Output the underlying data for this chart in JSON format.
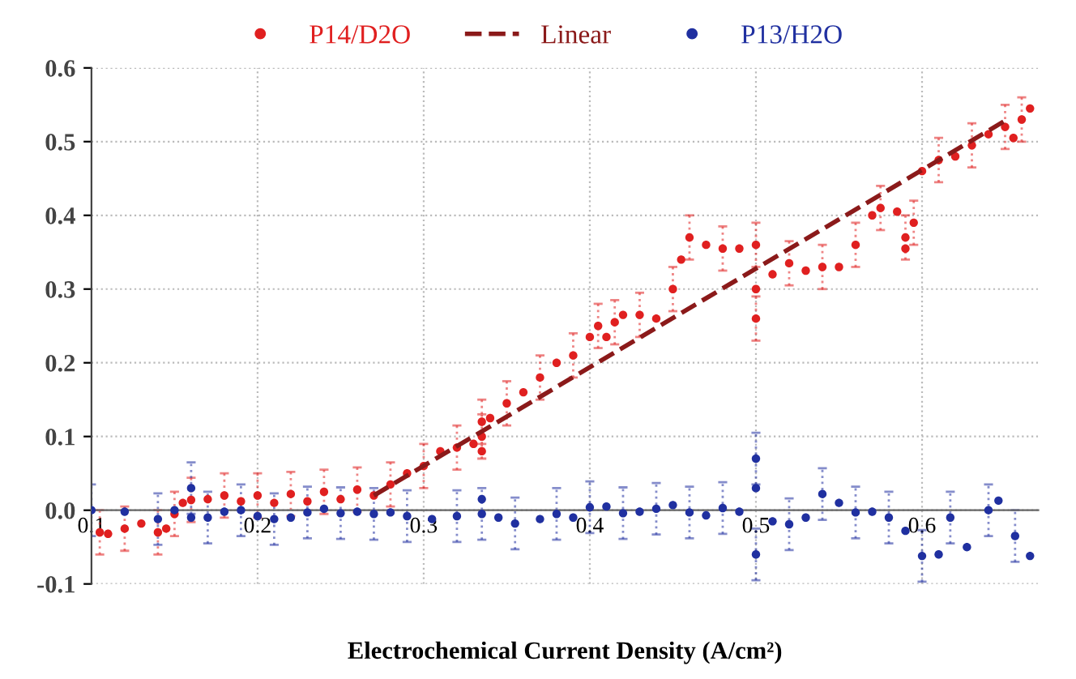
{
  "chart_data": {
    "type": "scatter",
    "xlabel": "Electrochemical Current Density (A/cm²)",
    "xlim": [
      0.1,
      0.67
    ],
    "xticks": [
      0.1,
      0.2,
      0.3,
      0.4,
      0.5,
      0.6
    ],
    "ylim": [
      -0.1,
      0.6
    ],
    "yticks": [
      -0.1,
      {
        "value": 0,
        "label": "0.0"
      },
      0.1,
      0.2,
      0.3,
      0.4,
      0.5,
      0.6
    ],
    "grid": true,
    "legend": "top",
    "marker": "circle",
    "series": [
      {
        "name": "P14/D2O",
        "color": "#e02020",
        "x": [
          0.105,
          0.11,
          0.12,
          0.13,
          0.14,
          0.145,
          0.15,
          0.155,
          0.16,
          0.17,
          0.18,
          0.19,
          0.2,
          0.21,
          0.22,
          0.23,
          0.24,
          0.25,
          0.26,
          0.27,
          0.28,
          0.29,
          0.3,
          0.31,
          0.32,
          0.33,
          0.335,
          0.335,
          0.335,
          0.34,
          0.35,
          0.36,
          0.37,
          0.38,
          0.39,
          0.4,
          0.405,
          0.41,
          0.415,
          0.42,
          0.43,
          0.44,
          0.45,
          0.455,
          0.46,
          0.47,
          0.48,
          0.49,
          0.5,
          0.5,
          0.5,
          0.51,
          0.52,
          0.53,
          0.54,
          0.55,
          0.56,
          0.57,
          0.575,
          0.585,
          0.59,
          0.59,
          0.595,
          0.6,
          0.61,
          0.62,
          0.63,
          0.64,
          0.65,
          0.655,
          0.66,
          0.665
        ],
        "values": [
          -0.03,
          -0.032,
          -0.025,
          -0.018,
          -0.03,
          -0.025,
          -0.005,
          0.01,
          0.014,
          0.015,
          0.02,
          0.012,
          0.02,
          0.01,
          0.022,
          0.012,
          0.025,
          0.015,
          0.028,
          0.02,
          0.035,
          0.05,
          0.06,
          0.08,
          0.085,
          0.09,
          0.1,
          0.08,
          0.12,
          0.125,
          0.145,
          0.16,
          0.18,
          0.2,
          0.21,
          0.235,
          0.25,
          0.235,
          0.255,
          0.265,
          0.265,
          0.26,
          0.3,
          0.34,
          0.37,
          0.36,
          0.355,
          0.355,
          0.36,
          0.3,
          0.26,
          0.32,
          0.335,
          0.325,
          0.33,
          0.33,
          0.36,
          0.4,
          0.41,
          0.405,
          0.37,
          0.355,
          0.39,
          0.46,
          0.475,
          0.48,
          0.495,
          0.51,
          0.52,
          0.505,
          0.53,
          0.545
        ],
        "errors": [
          0.03,
          null,
          0.03,
          null,
          0.03,
          null,
          0.03,
          null,
          0.03,
          null,
          0.03,
          null,
          0.03,
          null,
          0.03,
          null,
          0.03,
          null,
          0.03,
          null,
          0.03,
          null,
          0.03,
          null,
          0.03,
          null,
          0.03,
          null,
          0.03,
          null,
          0.03,
          null,
          0.03,
          null,
          0.03,
          null,
          0.03,
          null,
          0.03,
          null,
          0.03,
          null,
          0.03,
          null,
          0.03,
          null,
          0.03,
          null,
          0.03,
          null,
          0.03,
          null,
          0.03,
          null,
          0.03,
          null,
          0.03,
          null,
          0.03,
          null,
          0.03,
          null,
          0.03,
          null,
          0.03,
          null,
          0.03,
          null,
          0.03,
          null,
          0.03,
          null
        ]
      },
      {
        "name": "Linear",
        "type": "line",
        "line_style": "dashed",
        "marker": "none",
        "color": "#8b1a1a",
        "x": [
          0.27,
          0.649
        ],
        "values": [
          0.02,
          0.527
        ]
      },
      {
        "name": "P13/H2O",
        "color": "#2030a0",
        "x": [
          0.1,
          0.12,
          0.14,
          0.15,
          0.16,
          0.16,
          0.17,
          0.18,
          0.19,
          0.2,
          0.21,
          0.22,
          0.23,
          0.24,
          0.25,
          0.26,
          0.27,
          0.28,
          0.29,
          0.305,
          0.32,
          0.335,
          0.335,
          0.345,
          0.355,
          0.37,
          0.38,
          0.39,
          0.4,
          0.41,
          0.42,
          0.43,
          0.44,
          0.45,
          0.46,
          0.47,
          0.48,
          0.49,
          0.5,
          0.5,
          0.5,
          0.51,
          0.52,
          0.53,
          0.54,
          0.55,
          0.56,
          0.57,
          0.58,
          0.59,
          0.6,
          0.61,
          0.617,
          0.627,
          0.64,
          0.646,
          0.656,
          0.665
        ],
        "values": [
          0,
          -0.002,
          -0.012,
          0,
          0.03,
          -0.01,
          -0.01,
          -0.002,
          0,
          -0.008,
          -0.012,
          -0.01,
          -0.003,
          0.002,
          -0.004,
          -0.002,
          -0.005,
          -0.003,
          -0.008,
          -0.012,
          -0.008,
          0.015,
          -0.005,
          -0.01,
          -0.018,
          -0.012,
          -0.005,
          -0.01,
          0.004,
          0.005,
          -0.004,
          -0.002,
          0.002,
          0.007,
          -0.003,
          -0.007,
          0.003,
          -0.002,
          0.07,
          0.03,
          -0.06,
          -0.015,
          -0.019,
          -0.01,
          0.022,
          0.01,
          -0.003,
          -0.002,
          -0.01,
          -0.028,
          -0.062,
          -0.06,
          -0.01,
          -0.05,
          0,
          0.013,
          -0.035,
          -0.062
        ],
        "errors": [
          0.035,
          null,
          0.035,
          null,
          0.035,
          null,
          0.035,
          null,
          0.035,
          null,
          0.035,
          null,
          0.035,
          null,
          0.035,
          null,
          0.035,
          null,
          0.035,
          null,
          0.035,
          null,
          0.035,
          null,
          0.035,
          null,
          0.035,
          null,
          0.035,
          null,
          0.035,
          null,
          0.035,
          null,
          0.035,
          null,
          0.035,
          null,
          0.035,
          null,
          0.035,
          null,
          0.035,
          null,
          0.035,
          null,
          0.035,
          null,
          0.035,
          null,
          0.035,
          null,
          0.035,
          null,
          0.035,
          null,
          0.035,
          null
        ]
      }
    ]
  }
}
